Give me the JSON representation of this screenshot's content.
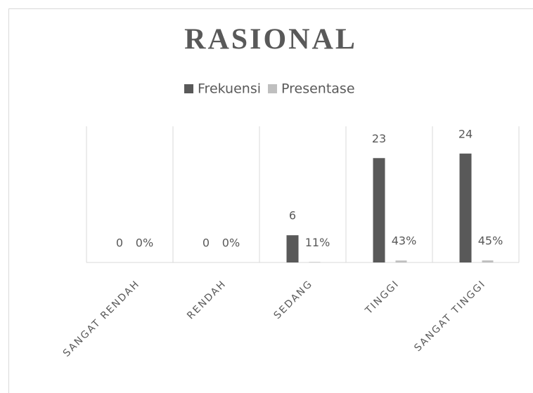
{
  "chart_data": {
    "type": "bar",
    "title": "RASIONAL",
    "categories": [
      "SANGAT RENDAH",
      "RENDAH",
      "SEDANG",
      "TINGGI",
      "SANGAT TINGGI"
    ],
    "series": [
      {
        "name": "Frekuensi",
        "color": "#595959",
        "values": [
          0,
          0,
          6,
          23,
          24
        ]
      },
      {
        "name": "Presentase",
        "color": "#bfbfbf",
        "values": [
          0,
          0,
          0.11,
          0.43,
          0.45
        ],
        "value_labels": [
          "0%",
          "0%",
          "11%",
          "43%",
          "45%"
        ]
      }
    ],
    "ylim": [
      0,
      30
    ],
    "legend": "top"
  }
}
